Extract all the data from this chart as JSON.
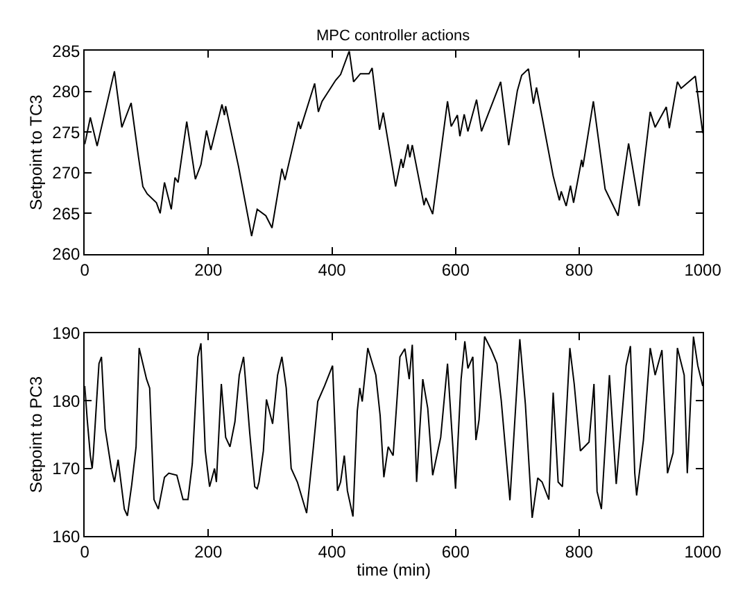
{
  "chart_data": [
    {
      "type": "line",
      "title": "MPC controller actions",
      "ylabel": "Setpoint to TC3",
      "xlim": [
        0,
        1000
      ],
      "xticks": [
        0,
        200,
        400,
        600,
        800,
        1000
      ],
      "ylim": [
        260,
        285
      ],
      "yticks": [
        260,
        265,
        270,
        275,
        280,
        285
      ],
      "series": [
        {
          "color": "#000000",
          "x": [
            0,
            9,
            20,
            48,
            60,
            75,
            87,
            94,
            101,
            116,
            122,
            129,
            140,
            146,
            151,
            165,
            179,
            188,
            197,
            204,
            222,
            226,
            228,
            249,
            270,
            279,
            293,
            303,
            319,
            324,
            346,
            349,
            372,
            378,
            384,
            406,
            414,
            428,
            435,
            446,
            460,
            465,
            477,
            483,
            503,
            512,
            515,
            523,
            526,
            530,
            549,
            552,
            563,
            576,
            587,
            593,
            603,
            607,
            614,
            620,
            634,
            642,
            673,
            686,
            700,
            707,
            718,
            726,
            731,
            758,
            768,
            771,
            779,
            786,
            791,
            804,
            806,
            823,
            842,
            863,
            880,
            897,
            915,
            923,
            941,
            946,
            959,
            965,
            988,
            1000
          ],
          "values": [
            273.5,
            276.8,
            273.3,
            282.5,
            275.6,
            278.6,
            271.9,
            268.3,
            267.4,
            266.3,
            265,
            268.8,
            265.5,
            269.4,
            268.8,
            276.3,
            269.2,
            271,
            275.2,
            272.8,
            278.4,
            277.1,
            278.2,
            270.7,
            262.2,
            265.5,
            264.7,
            263.2,
            270.5,
            269.1,
            276.3,
            275.4,
            281,
            277.5,
            278.8,
            281.4,
            282.1,
            285,
            281.2,
            282.2,
            282.2,
            282.9,
            275.3,
            277.4,
            268.3,
            271.7,
            270.6,
            273.5,
            271.9,
            273.4,
            266,
            266.9,
            264.9,
            272.4,
            278.8,
            275.7,
            277.1,
            274.5,
            277.2,
            275.1,
            279,
            275.1,
            281.2,
            273.4,
            280.1,
            282,
            282.8,
            278.5,
            280.5,
            269.6,
            266.6,
            267.7,
            265.9,
            268.4,
            266.3,
            271.6,
            270.7,
            278.8,
            268,
            264.7,
            273.6,
            265.9,
            277.5,
            275.6,
            278.1,
            275.5,
            281.2,
            280.4,
            281.9,
            274.9
          ]
        }
      ]
    },
    {
      "type": "line",
      "xlabel": "time (min)",
      "ylabel": "Setpoint to PC3",
      "xlim": [
        0,
        1000
      ],
      "xticks": [
        0,
        200,
        400,
        600,
        800,
        1000
      ],
      "ylim": [
        160,
        190
      ],
      "yticks": [
        160,
        170,
        180,
        190
      ],
      "series": [
        {
          "color": "#000000",
          "x": [
            0,
            4,
            9,
            12,
            14,
            20,
            23,
            27,
            33,
            43,
            48,
            54,
            64,
            69,
            76,
            83,
            88,
            100,
            105,
            112,
            119,
            129,
            136,
            149,
            159,
            167,
            174,
            183,
            188,
            195,
            202,
            210,
            213,
            221,
            228,
            235,
            243,
            250,
            257,
            267,
            275,
            279,
            282,
            289,
            294,
            304,
            312,
            319,
            326,
            334,
            344,
            359,
            370,
            377,
            388,
            401,
            409,
            414,
            420,
            425,
            434,
            441,
            445,
            449,
            458,
            471,
            478,
            484,
            491,
            499,
            510,
            518,
            525,
            530,
            537,
            547,
            555,
            563,
            576,
            587,
            600,
            609,
            615,
            620,
            628,
            633,
            638,
            647,
            658,
            667,
            674,
            688,
            704,
            713,
            724,
            733,
            740,
            751,
            758,
            766,
            773,
            785,
            792,
            802,
            816,
            824,
            829,
            836,
            849,
            860,
            876,
            883,
            890,
            893,
            904,
            915,
            923,
            934,
            943,
            952,
            959,
            970,
            975,
            985,
            992,
            1000
          ],
          "values": [
            182.2,
            177.2,
            171.9,
            170,
            172.3,
            181.2,
            185.5,
            186.5,
            175.9,
            170,
            168,
            171.3,
            164,
            163,
            167.6,
            173.2,
            187.8,
            183.2,
            181.9,
            165.4,
            164,
            168.7,
            169.3,
            169,
            165.4,
            165.4,
            170.7,
            186.5,
            188.5,
            172.6,
            167.3,
            170,
            168,
            182.5,
            174.6,
            173.2,
            176.9,
            183.8,
            186.5,
            175.2,
            167.3,
            167,
            168,
            172.6,
            180.2,
            176.6,
            183.8,
            186.5,
            181.9,
            170,
            168,
            163.4,
            173.2,
            179.9,
            182.2,
            185.2,
            166.7,
            168,
            171.9,
            166.7,
            162.9,
            178.5,
            181.9,
            179.9,
            187.8,
            183.8,
            177.8,
            168.7,
            173.2,
            171.9,
            186.5,
            187.7,
            183.2,
            188.3,
            168,
            183.2,
            178.9,
            169,
            174.6,
            185.5,
            167,
            183.2,
            188.8,
            184.8,
            186.5,
            174.2,
            177.2,
            189.5,
            187.5,
            185.5,
            180,
            165.3,
            189.1,
            179.5,
            162.7,
            168.6,
            168,
            165.4,
            181.2,
            168,
            167.3,
            187.8,
            182.5,
            172.6,
            173.9,
            182.5,
            166.6,
            164,
            183.8,
            167.7,
            185.2,
            188.1,
            169.3,
            166,
            174.2,
            187.8,
            183.8,
            187.5,
            169.3,
            172.3,
            187.8,
            183.8,
            169.3,
            189.5,
            185.2,
            182.2
          ]
        }
      ]
    }
  ]
}
